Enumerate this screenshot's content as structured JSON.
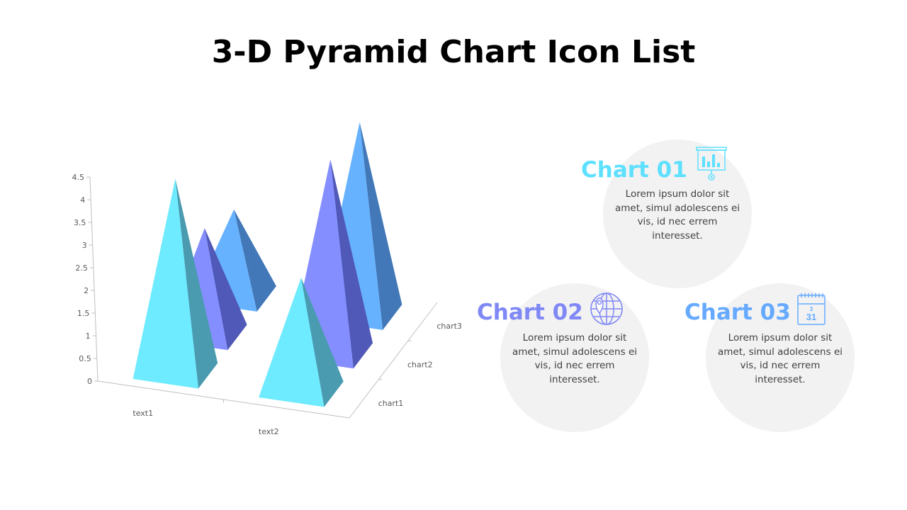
{
  "title": "3-D Pyramid Chart Icon List",
  "chart_data": {
    "type": "bar",
    "subtype": "3d-pyramid",
    "categories": [
      "text1",
      "text2"
    ],
    "series": [
      {
        "name": "chart1",
        "values": [
          4.3,
          2.5
        ],
        "color": "#6EEBFF",
        "side": "#4A9BB0"
      },
      {
        "name": "chart2",
        "values": [
          2.4,
          4.4
        ],
        "color": "#848EFF",
        "side": "#5058B8"
      },
      {
        "name": "chart3",
        "values": [
          2.0,
          4.5
        ],
        "color": "#66B2FF",
        "side": "#4278B8"
      }
    ],
    "yticks": [
      "0",
      "0.5",
      "1",
      "1.5",
      "2",
      "2.5",
      "3",
      "3.5",
      "4",
      "4.5"
    ],
    "ylim": [
      0,
      4.5
    ],
    "grid": false,
    "legend": "none"
  },
  "items": [
    {
      "title": "Chart 01",
      "color": "#5EE0FF",
      "icon": "presentation-chart-icon",
      "body": "Lorem ipsum dolor sit amet, simul adolescens ei vis, id nec errem interesset."
    },
    {
      "title": "Chart 02",
      "color": "#7F88F5",
      "icon": "globe-location-icon",
      "body": "Lorem ipsum dolor sit amet, simul adolescens ei vis, id nec errem interesset."
    },
    {
      "title": "Chart 03",
      "color": "#66AAFF",
      "icon": "calendar-icon",
      "body": "Lorem ipsum dolor sit amet, simul adolescens ei vis, id nec errem interesset.",
      "calendar_day": "31",
      "calendar_top": "3"
    }
  ]
}
